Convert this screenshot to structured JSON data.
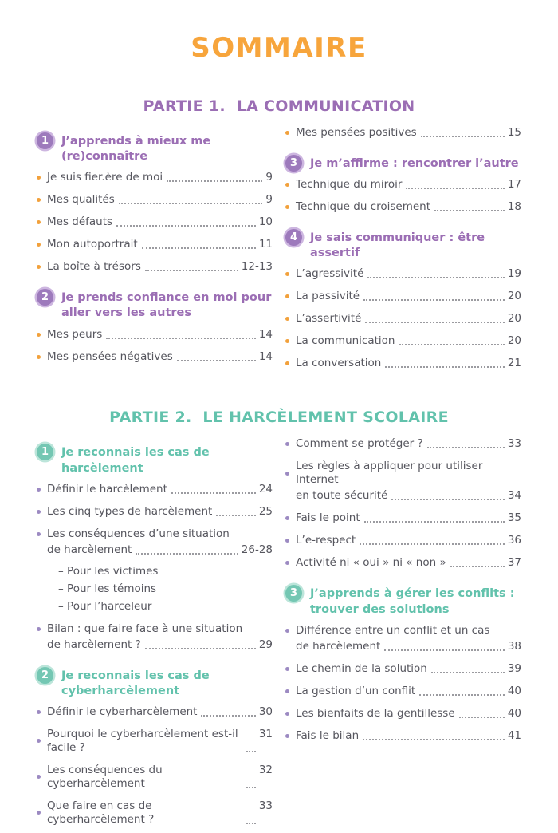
{
  "page": {
    "title": "SOMMAIRE",
    "colors": {
      "title_orange": "#F7A53C",
      "body_text": "#56565E",
      "dot_leader": "#9B9BA0"
    }
  },
  "parts": [
    {
      "title": "PARTIE 1.  LA COMMUNICATION",
      "accent": "#9B6EB4",
      "badge_bg": "#9D7ABC",
      "badge_ring": "#CDB6E0",
      "bullet": "#F2A13C",
      "columns": [
        [
          {
            "type": "heading",
            "num": "1",
            "text": "J’apprends à mieux me (re)connaître"
          },
          {
            "type": "item",
            "label": "Je suis fier.ère de moi",
            "page": "9"
          },
          {
            "type": "item",
            "label": "Mes qualités",
            "page": "9"
          },
          {
            "type": "item",
            "label": "Mes défauts",
            "page": "10"
          },
          {
            "type": "item",
            "label": "Mon autoportrait",
            "page": "11"
          },
          {
            "type": "item",
            "label": "La boîte à trésors",
            "page": "12-13"
          },
          {
            "type": "heading",
            "num": "2",
            "text": "Je prends confiance en moi pour aller vers les autres"
          },
          {
            "type": "item",
            "label": "Mes peurs",
            "page": "14"
          },
          {
            "type": "item",
            "label": "Mes pensées négatives",
            "page": "14"
          }
        ],
        [
          {
            "type": "item",
            "label": "Mes pensées positives",
            "page": "15"
          },
          {
            "type": "heading",
            "num": "3",
            "text": "Je m’affirme : rencontrer l’autre"
          },
          {
            "type": "item",
            "label": "Technique du miroir",
            "page": "17"
          },
          {
            "type": "item",
            "label": "Technique du croisement",
            "page": "18"
          },
          {
            "type": "heading",
            "num": "4",
            "text": "Je sais communiquer : être assertif"
          },
          {
            "type": "item",
            "label": "L’agressivité",
            "page": "19"
          },
          {
            "type": "item",
            "label": "La passivité",
            "page": "20"
          },
          {
            "type": "item",
            "label": "L’assertivité",
            "page": "20"
          },
          {
            "type": "item",
            "label": "La communication",
            "page": "20"
          },
          {
            "type": "item",
            "label": "La conversation",
            "page": "21"
          }
        ]
      ]
    },
    {
      "title": "PARTIE 2.  LE HARCÈLEMENT SCOLAIRE",
      "accent": "#62C2AC",
      "badge_bg": "#74C7B3",
      "badge_ring": "#BCE5DA",
      "bullet": "#9C8AC2",
      "columns": [
        [
          {
            "type": "heading",
            "num": "1",
            "text": "Je reconnais les cas de harcèlement"
          },
          {
            "type": "item",
            "label": "Définir le harcèlement",
            "page": "24"
          },
          {
            "type": "item",
            "label": "Les cinq types de harcèlement",
            "page": "25"
          },
          {
            "type": "item",
            "label": "Les conséquences d’une situation",
            "label2": "de harcèlement",
            "page": "26-28"
          },
          {
            "type": "sub",
            "text": "– Pour les victimes"
          },
          {
            "type": "sub",
            "text": "– Pour les témoins"
          },
          {
            "type": "sub",
            "text": "– Pour l’harceleur"
          },
          {
            "type": "item",
            "label": "Bilan : que faire face à une situation",
            "label2": "de harcèlement ?",
            "page": "29"
          },
          {
            "type": "heading",
            "num": "2",
            "text": "Je reconnais les cas de cyberharcèlement"
          },
          {
            "type": "item",
            "label": "Définir le cyberharcèlement",
            "page": "30"
          },
          {
            "type": "item",
            "label": "Pourquoi le cyberharcèlement est-il facile ?",
            "page": "31"
          },
          {
            "type": "item",
            "label": "Les conséquences du cyberharcèlement",
            "page": "32"
          },
          {
            "type": "item",
            "label": "Que faire en cas de cyberharcèlement ?",
            "page": "33"
          }
        ],
        [
          {
            "type": "item",
            "label": "Comment se protéger ?",
            "page": "33"
          },
          {
            "type": "item",
            "label": "Les règles à appliquer pour utiliser Internet",
            "label2": "en toute sécurité",
            "page": "34"
          },
          {
            "type": "item",
            "label": "Fais le point",
            "page": "35"
          },
          {
            "type": "item",
            "label": "L’e-respect",
            "page": "36"
          },
          {
            "type": "item",
            "label": "Activité ni « oui » ni « non »",
            "page": "37"
          },
          {
            "type": "heading",
            "num": "3",
            "text": "J’apprends à gérer les conflits : trouver des solutions"
          },
          {
            "type": "item",
            "label": "Différence entre un conflit et un cas",
            "label2": "de harcèlement",
            "page": "38"
          },
          {
            "type": "item",
            "label": "Le chemin de la solution",
            "page": "39"
          },
          {
            "type": "item",
            "label": "La gestion d’un conflit",
            "page": "40"
          },
          {
            "type": "item",
            "label": "Les bienfaits de la gentillesse",
            "page": "40"
          },
          {
            "type": "item",
            "label": "Fais le bilan",
            "page": "41"
          }
        ]
      ]
    }
  ]
}
